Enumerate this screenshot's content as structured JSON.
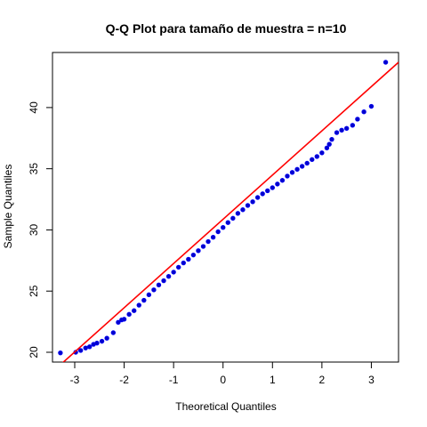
{
  "chart_data": {
    "type": "scatter",
    "title": "Q-Q Plot para tamaño de muestra = n=10",
    "xlabel": "Theoretical Quantiles",
    "ylabel": "Sample Quantiles",
    "xlim": [
      -3.45,
      3.55
    ],
    "ylim": [
      19.2,
      44.5
    ],
    "x_ticks": [
      -3,
      -2,
      -1,
      0,
      1,
      2,
      3
    ],
    "x_tick_labels": [
      "-3",
      "-2",
      "-1",
      "0",
      "1",
      "2",
      "3"
    ],
    "y_ticks": [
      20,
      25,
      30,
      35,
      40
    ],
    "y_tick_labels": [
      "20",
      "25",
      "30",
      "35",
      "40"
    ],
    "grid": false,
    "legend": "none",
    "point_color": "#0000ff",
    "line_color": "#ff0000",
    "reference_line": {
      "x": [
        -3.45,
        3.55
      ],
      "y": [
        18.4,
        43.7
      ]
    },
    "series": [
      {
        "x": [
          -3.29,
          -2.98,
          -2.88,
          -2.78,
          -2.7,
          -2.62,
          -2.55,
          -2.45,
          -2.35,
          -2.22,
          -2.12,
          -2.05,
          -2.0,
          -1.9,
          -1.8,
          -1.7,
          -1.6,
          -1.5,
          -1.4,
          -1.3,
          -1.2,
          -1.1,
          -1.0,
          -0.9,
          -0.8,
          -0.7,
          -0.6,
          -0.5,
          -0.4,
          -0.3,
          -0.2,
          -0.1,
          0.0,
          0.1,
          0.2,
          0.3,
          0.4,
          0.5,
          0.6,
          0.7,
          0.8,
          0.9,
          1.0,
          1.1,
          1.2,
          1.3,
          1.4,
          1.5,
          1.6,
          1.7,
          1.8,
          1.9,
          2.0,
          2.1,
          2.15,
          2.2,
          2.3,
          2.4,
          2.5,
          2.62,
          2.72,
          2.85,
          3.0,
          3.29
        ],
        "y": [
          19.95,
          20.0,
          20.15,
          20.35,
          20.45,
          20.65,
          20.75,
          20.9,
          21.15,
          21.6,
          22.45,
          22.65,
          22.7,
          23.1,
          23.4,
          23.85,
          24.25,
          24.7,
          25.1,
          25.5,
          25.85,
          26.2,
          26.55,
          26.95,
          27.3,
          27.6,
          27.95,
          28.3,
          28.65,
          29.05,
          29.4,
          29.85,
          30.2,
          30.6,
          30.95,
          31.35,
          31.65,
          32.0,
          32.3,
          32.65,
          32.95,
          33.2,
          33.45,
          33.75,
          34.05,
          34.4,
          34.7,
          34.95,
          35.2,
          35.45,
          35.75,
          36.0,
          36.3,
          36.7,
          37.0,
          37.4,
          37.95,
          38.15,
          38.3,
          38.55,
          39.05,
          39.65,
          40.1,
          43.7
        ]
      }
    ]
  }
}
